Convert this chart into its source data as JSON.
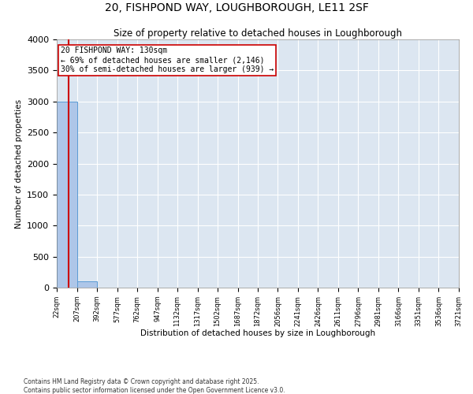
{
  "title": "20, FISHPOND WAY, LOUGHBOROUGH, LE11 2SF",
  "subtitle": "Size of property relative to detached houses in Loughborough",
  "xlabel": "Distribution of detached houses by size in Loughborough",
  "ylabel": "Number of detached properties",
  "bin_edges": [
    22,
    207,
    392,
    577,
    762,
    947,
    1132,
    1317,
    1502,
    1687,
    1872,
    2056,
    2241,
    2426,
    2611,
    2796,
    2981,
    3166,
    3351,
    3536,
    3721
  ],
  "bar_heights": [
    3000,
    100,
    0,
    0,
    0,
    0,
    0,
    0,
    0,
    0,
    0,
    0,
    0,
    0,
    0,
    0,
    0,
    0,
    0,
    0
  ],
  "bar_color": "#aec6e8",
  "bar_edge_color": "#5b9bd5",
  "property_size": 130,
  "property_label": "20 FISHPOND WAY: 130sqm",
  "annotation_line1": "← 69% of detached houses are smaller (2,146)",
  "annotation_line2": "30% of semi-detached houses are larger (939) →",
  "vline_color": "#cc0000",
  "box_edge_color": "#cc0000",
  "box_face_color": "#ffffff",
  "ylim": [
    0,
    4000
  ],
  "yticks": [
    0,
    500,
    1000,
    1500,
    2000,
    2500,
    3000,
    3500,
    4000
  ],
  "background_color": "#dce6f1",
  "grid_color": "#ffffff",
  "fig_bg_color": "#ffffff",
  "footer1": "Contains HM Land Registry data © Crown copyright and database right 2025.",
  "footer2": "Contains public sector information licensed under the Open Government Licence v3.0."
}
